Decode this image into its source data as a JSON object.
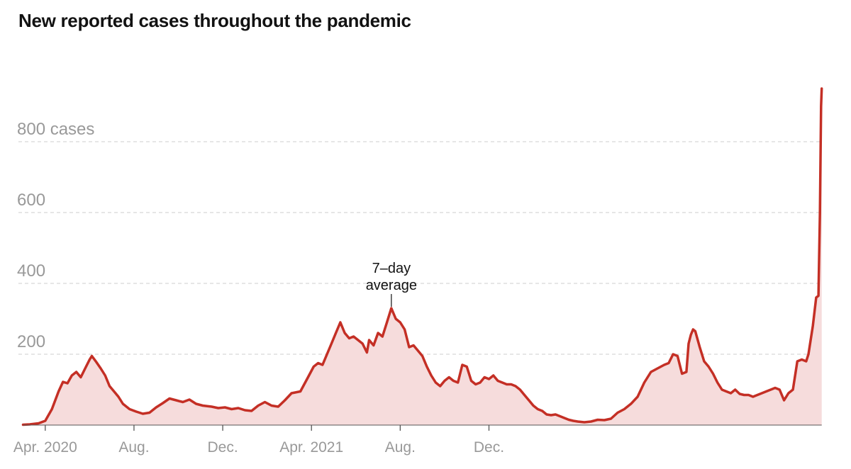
{
  "title": "New reported cases throughout the pandemic",
  "colors": {
    "line": "#c42f25",
    "area": "#f6dcdc",
    "grid": "#d6d6d6",
    "axis_text": "#999999",
    "title": "#121212"
  },
  "chart_data": {
    "type": "area",
    "title": "New reported cases throughout the pandemic",
    "series": [
      {
        "name": "7-day average",
        "values_in_months_since_2020_03_01": [
          [
            0.0,
            1
          ],
          [
            0.3,
            2
          ],
          [
            0.7,
            5
          ],
          [
            1.0,
            12
          ],
          [
            1.3,
            45
          ],
          [
            1.6,
            95
          ],
          [
            1.8,
            122
          ],
          [
            2.0,
            118
          ],
          [
            2.2,
            140
          ],
          [
            2.4,
            150
          ],
          [
            2.6,
            135
          ],
          [
            2.8,
            160
          ],
          [
            3.0,
            185
          ],
          [
            3.1,
            195
          ],
          [
            3.3,
            178
          ],
          [
            3.5,
            160
          ],
          [
            3.7,
            140
          ],
          [
            3.9,
            110
          ],
          [
            4.1,
            95
          ],
          [
            4.3,
            80
          ],
          [
            4.5,
            60
          ],
          [
            4.8,
            45
          ],
          [
            5.1,
            38
          ],
          [
            5.4,
            32
          ],
          [
            5.7,
            35
          ],
          [
            6.0,
            50
          ],
          [
            6.3,
            62
          ],
          [
            6.6,
            75
          ],
          [
            6.9,
            70
          ],
          [
            7.2,
            65
          ],
          [
            7.5,
            72
          ],
          [
            7.8,
            60
          ],
          [
            8.1,
            55
          ],
          [
            8.5,
            52
          ],
          [
            8.8,
            48
          ],
          [
            9.1,
            50
          ],
          [
            9.4,
            45
          ],
          [
            9.7,
            48
          ],
          [
            10.0,
            42
          ],
          [
            10.3,
            40
          ],
          [
            10.6,
            55
          ],
          [
            10.9,
            65
          ],
          [
            11.2,
            55
          ],
          [
            11.5,
            52
          ],
          [
            11.8,
            70
          ],
          [
            12.1,
            90
          ],
          [
            12.5,
            95
          ],
          [
            12.8,
            130
          ],
          [
            13.1,
            165
          ],
          [
            13.3,
            175
          ],
          [
            13.5,
            170
          ],
          [
            13.7,
            200
          ],
          [
            13.9,
            230
          ],
          [
            14.1,
            260
          ],
          [
            14.3,
            290
          ],
          [
            14.5,
            260
          ],
          [
            14.7,
            245
          ],
          [
            14.9,
            250
          ],
          [
            15.1,
            240
          ],
          [
            15.3,
            230
          ],
          [
            15.5,
            205
          ],
          [
            15.6,
            240
          ],
          [
            15.8,
            225
          ],
          [
            16.0,
            260
          ],
          [
            16.2,
            250
          ],
          [
            16.4,
            290
          ],
          [
            16.6,
            330
          ],
          [
            16.8,
            300
          ],
          [
            17.0,
            290
          ],
          [
            17.2,
            270
          ],
          [
            17.4,
            220
          ],
          [
            17.6,
            225
          ],
          [
            17.8,
            210
          ],
          [
            18.0,
            195
          ],
          [
            18.2,
            165
          ],
          [
            18.4,
            140
          ],
          [
            18.6,
            120
          ],
          [
            18.8,
            110
          ],
          [
            19.0,
            125
          ],
          [
            19.2,
            135
          ],
          [
            19.4,
            125
          ],
          [
            19.6,
            120
          ],
          [
            19.8,
            170
          ],
          [
            20.0,
            165
          ],
          [
            20.2,
            125
          ],
          [
            20.4,
            115
          ],
          [
            20.6,
            120
          ],
          [
            20.8,
            135
          ],
          [
            21.0,
            130
          ],
          [
            21.2,
            140
          ],
          [
            21.4,
            125
          ],
          [
            21.6,
            120
          ],
          [
            21.8,
            115
          ],
          [
            22.0,
            115
          ],
          [
            22.2,
            110
          ],
          [
            22.4,
            100
          ],
          [
            22.6,
            85
          ],
          [
            22.8,
            70
          ],
          [
            23.0,
            55
          ],
          [
            23.2,
            45
          ],
          [
            23.4,
            40
          ],
          [
            23.6,
            30
          ],
          [
            23.8,
            28
          ],
          [
            24.0,
            30
          ],
          [
            24.2,
            25
          ],
          [
            24.4,
            20
          ],
          [
            24.6,
            15
          ],
          [
            24.8,
            12
          ],
          [
            25.0,
            10
          ],
          [
            25.3,
            8
          ],
          [
            25.6,
            10
          ],
          [
            25.9,
            15
          ],
          [
            26.2,
            14
          ],
          [
            26.5,
            18
          ],
          [
            26.8,
            35
          ],
          [
            27.1,
            45
          ],
          [
            27.4,
            60
          ],
          [
            27.7,
            80
          ],
          [
            28.0,
            120
          ],
          [
            28.3,
            150
          ],
          [
            28.6,
            160
          ],
          [
            28.9,
            170
          ],
          [
            29.1,
            175
          ],
          [
            29.3,
            200
          ],
          [
            29.5,
            195
          ],
          [
            29.7,
            145
          ],
          [
            29.9,
            150
          ],
          [
            30.0,
            230
          ],
          [
            30.1,
            255
          ],
          [
            30.2,
            270
          ],
          [
            30.3,
            265
          ],
          [
            30.5,
            220
          ],
          [
            30.7,
            180
          ],
          [
            30.9,
            165
          ],
          [
            31.1,
            145
          ],
          [
            31.3,
            120
          ],
          [
            31.5,
            100
          ],
          [
            31.7,
            95
          ],
          [
            31.9,
            90
          ],
          [
            32.1,
            100
          ],
          [
            32.3,
            88
          ],
          [
            32.5,
            85
          ],
          [
            32.7,
            85
          ],
          [
            32.9,
            80
          ],
          [
            33.1,
            85
          ],
          [
            33.3,
            90
          ],
          [
            33.5,
            95
          ],
          [
            33.7,
            100
          ],
          [
            33.9,
            105
          ],
          [
            34.1,
            100
          ],
          [
            34.3,
            70
          ],
          [
            34.5,
            90
          ],
          [
            34.7,
            100
          ],
          [
            34.9,
            180
          ],
          [
            35.1,
            185
          ],
          [
            35.3,
            180
          ],
          [
            35.4,
            200
          ],
          [
            35.6,
            280
          ],
          [
            35.75,
            360
          ],
          [
            35.85,
            365
          ],
          [
            35.92,
            600
          ],
          [
            35.97,
            900
          ],
          [
            36.0,
            950
          ]
        ]
      }
    ],
    "x_axis": {
      "range_months_since_2020_03_01": [
        -0.4,
        36.2
      ],
      "ticks": [
        {
          "label": "Apr. 2020",
          "months": 1
        },
        {
          "label": "Aug.",
          "months": 5
        },
        {
          "label": "Dec.",
          "months": 9
        },
        {
          "label": "Apr. 2021",
          "months": 13
        },
        {
          "label": "Aug.",
          "months": 17
        },
        {
          "label": "Dec.",
          "months": 21
        }
      ]
    },
    "y_axis": {
      "label": "",
      "ylim": [
        0,
        1000
      ],
      "ticks": [
        {
          "label": "200",
          "value": 200
        },
        {
          "label": "400",
          "value": 400
        },
        {
          "label": "600",
          "value": 600
        },
        {
          "label": "800 cases",
          "value": 800
        }
      ],
      "grid": true
    },
    "annotation": {
      "lines": [
        "7–day",
        "average"
      ],
      "at_months": 16.6,
      "at_value": 330
    }
  }
}
